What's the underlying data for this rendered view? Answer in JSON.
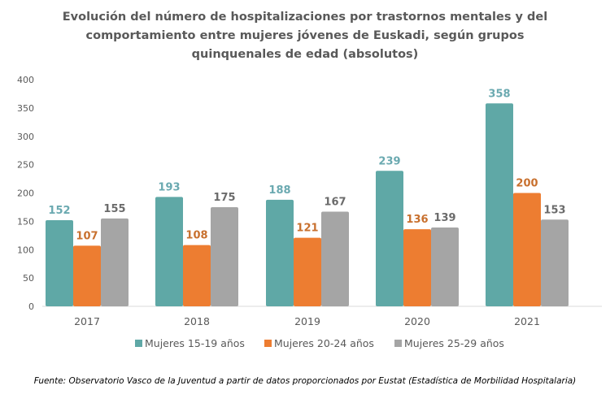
{
  "chart_data": {
    "type": "bar",
    "title_lines": [
      "Evolución del número de hospitalizaciones por trastornos mentales y del",
      "comportamiento entre mujeres jóvenes de Euskadi, según grupos",
      "quinquenales de edad (absolutos)"
    ],
    "categories": [
      "2017",
      "2018",
      "2019",
      "2020",
      "2021"
    ],
    "series": [
      {
        "name": "Mujeres 15-19 años",
        "color": "#5fa8a6",
        "label_color": "#6aa9b0",
        "values": [
          152,
          193,
          188,
          239,
          358
        ]
      },
      {
        "name": "Mujeres 20-24 años",
        "color": "#ed7d31",
        "label_color": "#c8702e",
        "values": [
          107,
          108,
          121,
          136,
          200
        ]
      },
      {
        "name": "Mujeres 25-29 años",
        "color": "#a5a5a5",
        "label_color": "#6b6b6b",
        "values": [
          155,
          175,
          167,
          139,
          153
        ]
      }
    ],
    "yticks": [
      0,
      50,
      100,
      150,
      200,
      250,
      300,
      350,
      400
    ],
    "ylim": [
      0,
      400
    ],
    "grid": false,
    "legend_position": "bottom",
    "source": "Fuente: Observatorio Vasco de la Juventud a partir de datos proporcionados por Eustat (Estadística de Morbilidad Hospitalaria)"
  }
}
